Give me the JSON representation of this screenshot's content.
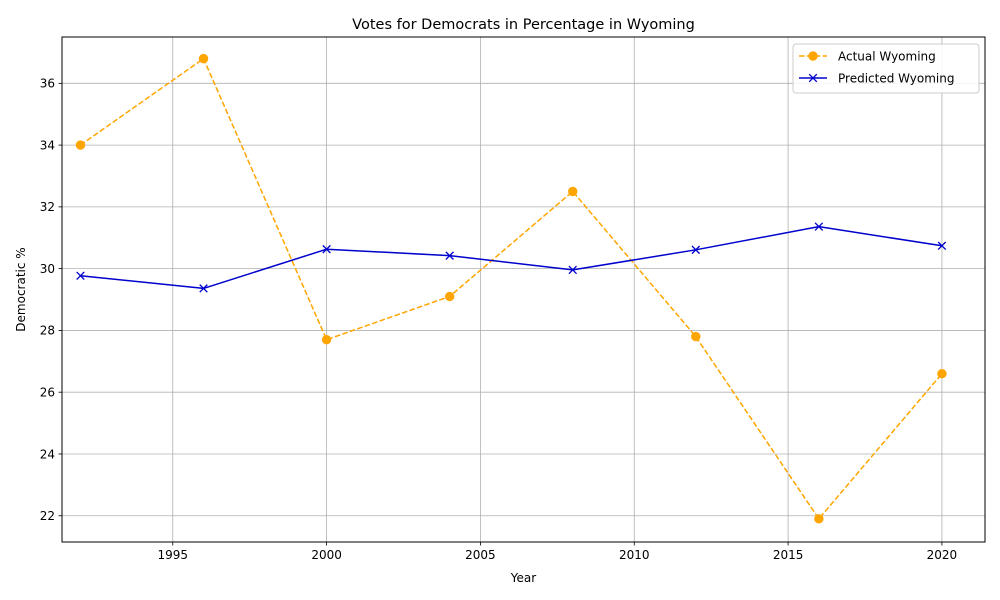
{
  "chart_data": {
    "type": "line",
    "title": "Votes for Democrats in Percentage in Wyoming",
    "xlabel": "Year",
    "ylabel": "Democratic %",
    "x": [
      1992,
      1996,
      2000,
      2004,
      2008,
      2012,
      2016,
      2020
    ],
    "xlim": [
      1991.4,
      2021.4
    ],
    "ylim": [
      21.15,
      37.5
    ],
    "xticks": [
      1995,
      2000,
      2005,
      2010,
      2015,
      2020
    ],
    "yticks": [
      22,
      24,
      26,
      28,
      30,
      32,
      34,
      36
    ],
    "grid": true,
    "legend_position": "top-right",
    "series": [
      {
        "name": "Actual Wyoming",
        "values": [
          34.0,
          36.8,
          27.7,
          29.1,
          32.5,
          27.8,
          21.9,
          26.6
        ],
        "color": "#ffa500",
        "line_style": "dashed",
        "marker": "circle"
      },
      {
        "name": "Predicted Wyoming",
        "values": [
          29.77,
          29.36,
          30.63,
          30.42,
          29.96,
          30.61,
          31.36,
          30.74
        ],
        "color": "#0000cd",
        "line_style": "solid",
        "marker": "x"
      }
    ]
  }
}
